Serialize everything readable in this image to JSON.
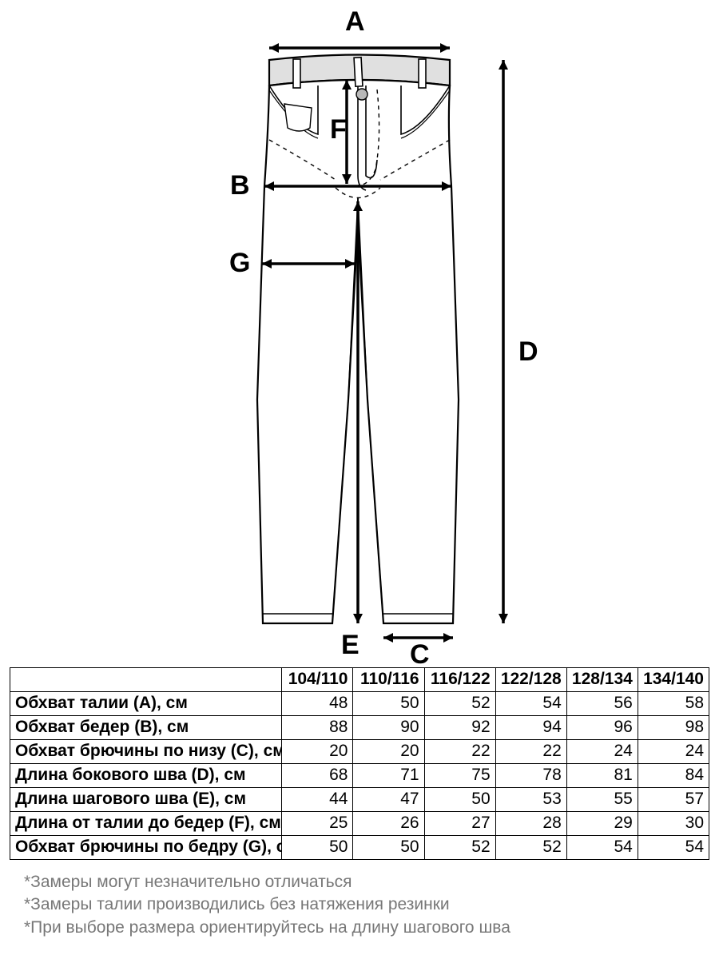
{
  "labels": {
    "A": "A",
    "B": "B",
    "C": "C",
    "D": "D",
    "E": "E",
    "F": "F",
    "G": "G"
  },
  "table": {
    "columns": [
      "104/110",
      "110/116",
      "116/122",
      "122/128",
      "128/134",
      "134/140"
    ],
    "col_width_first": 340,
    "col_width_rest": 89,
    "rows": [
      {
        "label": "Обхват талии (A), см",
        "values": [
          48,
          50,
          52,
          54,
          56,
          58
        ]
      },
      {
        "label": "Обхват бедер (B), см",
        "values": [
          88,
          90,
          92,
          94,
          96,
          98
        ]
      },
      {
        "label": "Обхват брючины по низу (C), см",
        "values": [
          20,
          20,
          22,
          22,
          24,
          24
        ]
      },
      {
        "label": "Длина бокового шва (D), см",
        "values": [
          68,
          71,
          75,
          78,
          81,
          84
        ]
      },
      {
        "label": "Длина шагового шва (E), см",
        "values": [
          44,
          47,
          50,
          53,
          55,
          57
        ]
      },
      {
        "label": "Длина от талии до бедер (F), см",
        "values": [
          25,
          26,
          27,
          28,
          29,
          30
        ]
      },
      {
        "label": "Обхват брючины по бедру (G), см",
        "values": [
          50,
          50,
          52,
          52,
          54,
          54
        ]
      }
    ],
    "border_color": "#000000",
    "font_size": 21,
    "header_weight": 700
  },
  "notes": {
    "lines": [
      "*Замеры могут незначительно отличаться",
      "*Замеры талии производились без натяжения резинки",
      "*При выборе размера ориентируйтесь на длину шагового шва"
    ],
    "color": "#777777",
    "font_size": 21
  },
  "diagram": {
    "stroke": "#000000",
    "fill": "#ffffff",
    "waistband_fill": "#e0e0e0",
    "line_width_outline": 2.2,
    "line_width_detail": 1.6,
    "arrow_width": 3.5,
    "label_fontsize": 34,
    "label_fontweight": 700
  }
}
